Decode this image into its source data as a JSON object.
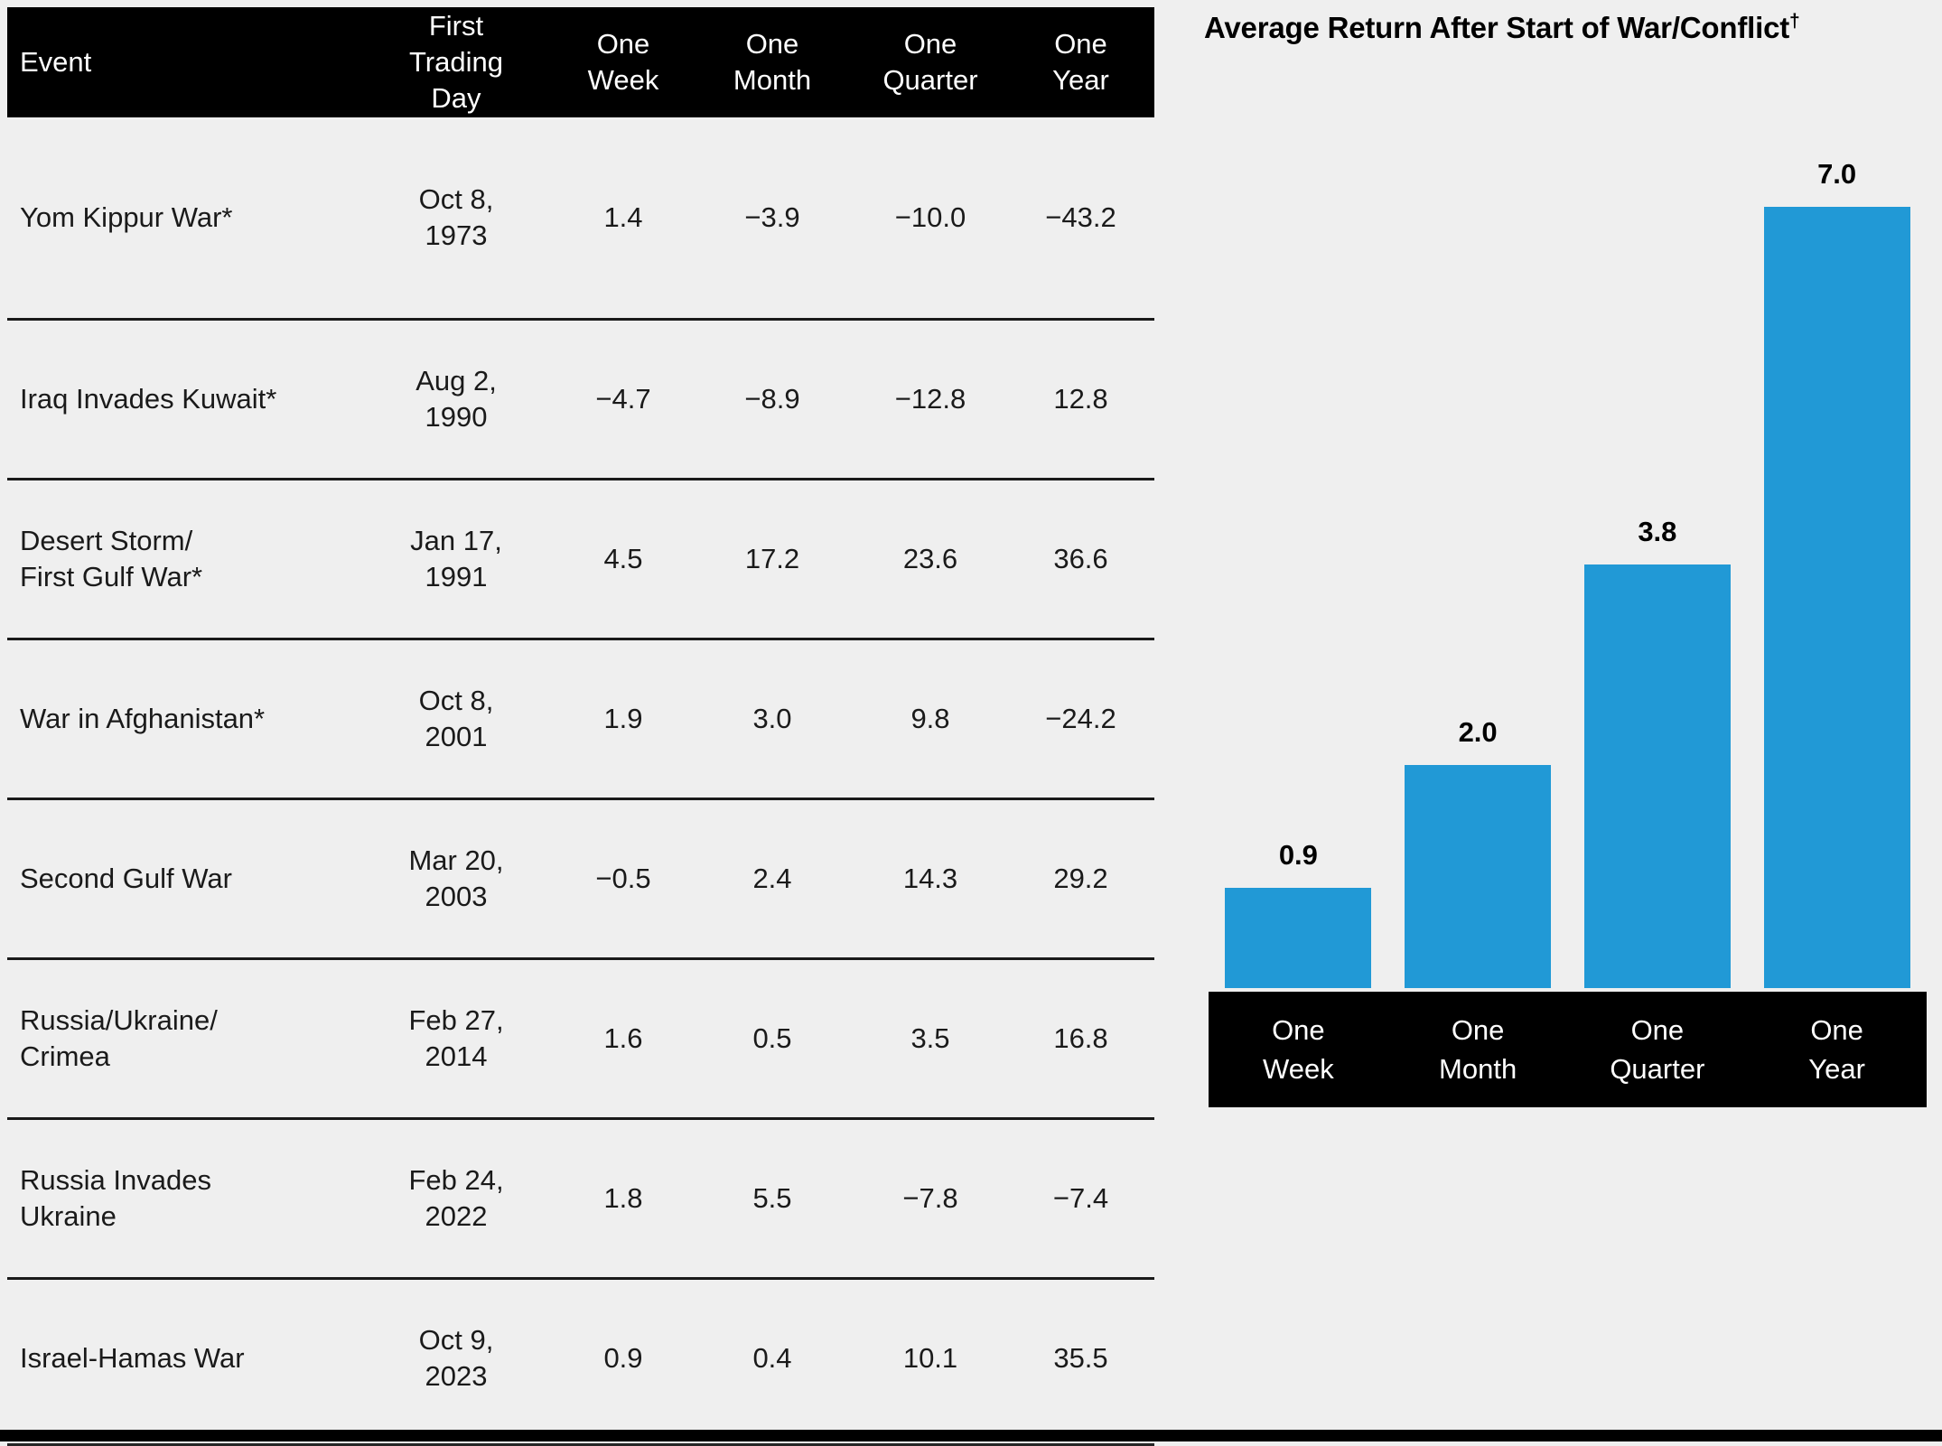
{
  "page": {
    "background": "#efefef",
    "bottom_bar_color": "#000000"
  },
  "table": {
    "header": {
      "event": "Event",
      "first_trading_day": "First\nTrading\nDay",
      "one_week": "One\nWeek",
      "one_month": "One\nMonth",
      "one_quarter": "One\nQuarter",
      "one_year": "One\nYear"
    },
    "rows": [
      {
        "event": "Yom Kippur War*",
        "first_trading_day": "Oct 8,\n1973",
        "one_week": "1.4",
        "one_month": "−3.9",
        "one_quarter": "−10.0",
        "one_year": "−43.2"
      },
      {
        "event": "Iraq Invades Kuwait*",
        "first_trading_day": "Aug 2,\n1990",
        "one_week": "−4.7",
        "one_month": "−8.9",
        "one_quarter": "−12.8",
        "one_year": "12.8"
      },
      {
        "event": "Desert Storm/\nFirst Gulf War*",
        "first_trading_day": "Jan 17,\n1991",
        "one_week": "4.5",
        "one_month": "17.2",
        "one_quarter": "23.6",
        "one_year": "36.6"
      },
      {
        "event": "War in Afghanistan*",
        "first_trading_day": "Oct 8,\n2001",
        "one_week": "1.9",
        "one_month": "3.0",
        "one_quarter": "9.8",
        "one_year": "−24.2"
      },
      {
        "event": "Second Gulf War",
        "first_trading_day": "Mar 20,\n2003",
        "one_week": "−0.5",
        "one_month": "2.4",
        "one_quarter": "14.3",
        "one_year": "29.2"
      },
      {
        "event": "Russia/Ukraine/\nCrimea",
        "first_trading_day": "Feb 27,\n2014",
        "one_week": "1.6",
        "one_month": "0.5",
        "one_quarter": "3.5",
        "one_year": "16.8"
      },
      {
        "event": "Russia Invades\nUkraine",
        "first_trading_day": "Feb 24,\n2022",
        "one_week": "1.8",
        "one_month": "5.5",
        "one_quarter": "−7.8",
        "one_year": "−7.4"
      },
      {
        "event": "Israel-Hamas War",
        "first_trading_day": "Oct 9,\n2023",
        "one_week": "0.9",
        "one_month": "0.4",
        "one_quarter": "10.1",
        "one_year": "35.5"
      }
    ]
  },
  "chart_data": {
    "type": "bar",
    "title": "Average Return After Start of War/Conflict",
    "title_superscript": "†",
    "categories": [
      "One Week",
      "One Month",
      "One Quarter",
      "One Year"
    ],
    "values": [
      0.9,
      2.0,
      3.8,
      7.0
    ],
    "value_labels": [
      "0.9",
      "2.0",
      "3.8",
      "7.0"
    ],
    "tick_labels": [
      "One\nWeek",
      "One\nMonth",
      "One\nQuarter",
      "One\nYear"
    ],
    "bar_color": "#2199d6",
    "axis_band_color": "#000000",
    "tick_text_color": "#ffffff",
    "value_label_position": "above bars, bold",
    "ylim": [
      0,
      7.7
    ],
    "grid": false,
    "legend": "none"
  }
}
